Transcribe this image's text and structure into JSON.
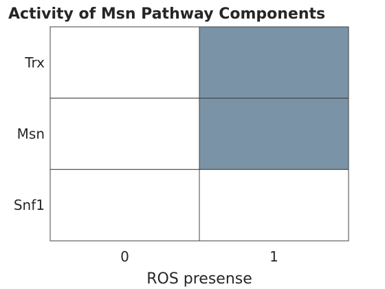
{
  "chart_data": {
    "type": "heatmap",
    "title": "Activity of Msn Pathway Components",
    "xlabel": "ROS presense",
    "ylabel": "",
    "x_categories": [
      "0",
      "1"
    ],
    "y_categories": [
      "Trx",
      "Msn",
      "Snf1"
    ],
    "values": [
      [
        0,
        1
      ],
      [
        0,
        1
      ],
      [
        0,
        0
      ]
    ],
    "colors": {
      "active": "#7b93a6",
      "inactive": "#ffffff",
      "grid": "#404040"
    },
    "grid": true,
    "legend": "none"
  }
}
